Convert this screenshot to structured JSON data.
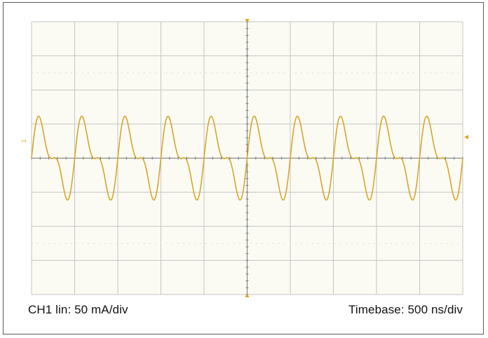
{
  "colors": {
    "trace": "#d9a52b",
    "grid": "#c4c4c4",
    "grid_dots": "#dcdcdc",
    "screen_bg": "#fbfbf4",
    "axis": "#777777",
    "marker": "#e0a01c"
  },
  "scope": {
    "channel_readout": "CH1 lin: 50 mA/div",
    "timebase_readout": "Timebase: 500 ns/div",
    "channel_marker_label": "1"
  },
  "chart_data": {
    "type": "line",
    "title": "",
    "xlabel": "",
    "ylabel": "",
    "x_unit": "ns",
    "y_unit": "mA",
    "x_divisions": 10,
    "y_divisions": 8,
    "xlim": [
      -2500,
      2500
    ],
    "ylim": [
      -200,
      200
    ],
    "series": [
      {
        "name": "",
        "shape": "sum of fundamental and second harmonic",
        "fundamental_period_ns": 500,
        "fundamental_amplitude_mA": 46,
        "second_harmonic_amplitude_mA": 25,
        "second_harmonic_phase_deg": 0,
        "phase_deg": 0,
        "offset_mA": 0,
        "start_ns": -2500,
        "end_ns": 2500,
        "peaks_mA": [
          {
            "x_ns": -2325,
            "y_mA": 68
          },
          {
            "x_ns": -2100,
            "y_mA": 16
          },
          {
            "x_ns": -1825,
            "y_mA": 68
          },
          {
            "x_ns": -1600,
            "y_mA": 16
          },
          {
            "x_ns": -1325,
            "y_mA": 68
          },
          {
            "x_ns": -1100,
            "y_mA": 16
          },
          {
            "x_ns": -825,
            "y_mA": 68
          },
          {
            "x_ns": -600,
            "y_mA": 16
          },
          {
            "x_ns": -325,
            "y_mA": 68
          },
          {
            "x_ns": -100,
            "y_mA": 16
          }
        ],
        "troughs_mA": [
          {
            "x_ns": -2000,
            "y_mA": -45
          },
          {
            "x_ns": -1750,
            "y_mA": -10
          }
        ]
      }
    ]
  }
}
